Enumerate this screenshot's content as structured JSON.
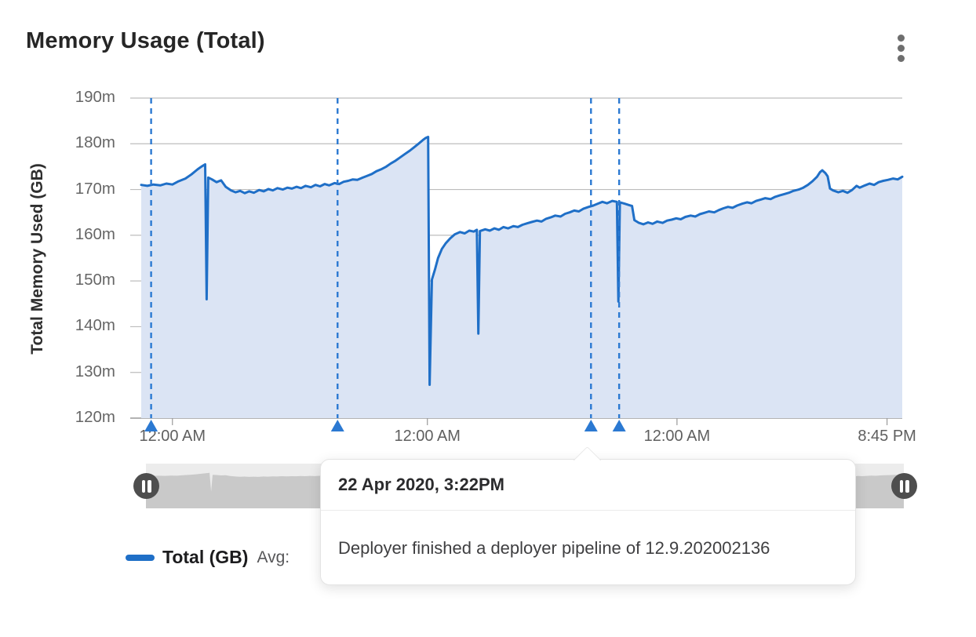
{
  "header": {
    "title": "Memory Usage (Total)"
  },
  "chart_data": {
    "type": "area",
    "title": "Memory Usage (Total)",
    "xlabel": "",
    "ylabel": "Total Memory Used (GB)",
    "ylim": [
      120,
      190
    ],
    "grid": true,
    "y_ticks": [
      {
        "value": 190,
        "label": "190m"
      },
      {
        "value": 180,
        "label": "180m"
      },
      {
        "value": 170,
        "label": "170m"
      },
      {
        "value": 160,
        "label": "160m"
      },
      {
        "value": 150,
        "label": "150m"
      },
      {
        "value": 140,
        "label": "140m"
      },
      {
        "value": 130,
        "label": "130m"
      },
      {
        "value": 120,
        "label": "120m"
      }
    ],
    "x_ticks": [
      {
        "pos": 0.041,
        "label": "12:00 AM"
      },
      {
        "pos": 0.376,
        "label": "12:00 AM"
      },
      {
        "pos": 0.704,
        "label": "12:00 AM"
      },
      {
        "pos": 0.98,
        "label": "8:45 PM"
      }
    ],
    "series": [
      {
        "name": "Total (GB)",
        "color": "#1f6fc7",
        "fill": "#dbe4f4",
        "points": [
          [
            0,
            171
          ],
          [
            0.008,
            170.8
          ],
          [
            0.016,
            171.1
          ],
          [
            0.025,
            170.9
          ],
          [
            0.033,
            171.3
          ],
          [
            0.041,
            171.1
          ],
          [
            0.049,
            171.8
          ],
          [
            0.058,
            172.4
          ],
          [
            0.066,
            173.3
          ],
          [
            0.074,
            174.4
          ],
          [
            0.08,
            175.1
          ],
          [
            0.084,
            175.5
          ],
          [
            0.086,
            146
          ],
          [
            0.088,
            172.6
          ],
          [
            0.093,
            172.2
          ],
          [
            0.099,
            171.6
          ],
          [
            0.105,
            172
          ],
          [
            0.111,
            170.6
          ],
          [
            0.118,
            169.8
          ],
          [
            0.124,
            169.4
          ],
          [
            0.13,
            169.7
          ],
          [
            0.136,
            169.2
          ],
          [
            0.142,
            169.6
          ],
          [
            0.148,
            169.3
          ],
          [
            0.155,
            169.9
          ],
          [
            0.161,
            169.6
          ],
          [
            0.167,
            170.1
          ],
          [
            0.173,
            169.8
          ],
          [
            0.179,
            170.3
          ],
          [
            0.186,
            170
          ],
          [
            0.192,
            170.4
          ],
          [
            0.198,
            170.2
          ],
          [
            0.204,
            170.6
          ],
          [
            0.21,
            170.3
          ],
          [
            0.216,
            170.8
          ],
          [
            0.223,
            170.5
          ],
          [
            0.229,
            171
          ],
          [
            0.235,
            170.7
          ],
          [
            0.241,
            171.2
          ],
          [
            0.247,
            170.9
          ],
          [
            0.254,
            171.4
          ],
          [
            0.26,
            171.2
          ],
          [
            0.266,
            171.7
          ],
          [
            0.272,
            171.9
          ],
          [
            0.278,
            172.2
          ],
          [
            0.284,
            172.1
          ],
          [
            0.291,
            172.6
          ],
          [
            0.297,
            173
          ],
          [
            0.303,
            173.4
          ],
          [
            0.309,
            174
          ],
          [
            0.315,
            174.4
          ],
          [
            0.322,
            175
          ],
          [
            0.328,
            175.7
          ],
          [
            0.334,
            176.3
          ],
          [
            0.34,
            177
          ],
          [
            0.346,
            177.7
          ],
          [
            0.353,
            178.5
          ],
          [
            0.359,
            179.3
          ],
          [
            0.365,
            180.1
          ],
          [
            0.37,
            180.8
          ],
          [
            0.374,
            181.3
          ],
          [
            0.377,
            181.5
          ],
          [
            0.379,
            127.3
          ],
          [
            0.382,
            150.3
          ],
          [
            0.386,
            152.5
          ],
          [
            0.39,
            155
          ],
          [
            0.395,
            157
          ],
          [
            0.4,
            158.2
          ],
          [
            0.406,
            159.3
          ],
          [
            0.412,
            160.2
          ],
          [
            0.419,
            160.7
          ],
          [
            0.425,
            160.4
          ],
          [
            0.431,
            161
          ],
          [
            0.437,
            160.8
          ],
          [
            0.441,
            161.2
          ],
          [
            0.443,
            138.5
          ],
          [
            0.445,
            160.9
          ],
          [
            0.452,
            161.3
          ],
          [
            0.458,
            161
          ],
          [
            0.464,
            161.5
          ],
          [
            0.47,
            161.2
          ],
          [
            0.476,
            161.8
          ],
          [
            0.482,
            161.5
          ],
          [
            0.489,
            162
          ],
          [
            0.495,
            161.8
          ],
          [
            0.501,
            162.3
          ],
          [
            0.507,
            162.6
          ],
          [
            0.513,
            162.9
          ],
          [
            0.52,
            163.2
          ],
          [
            0.526,
            163
          ],
          [
            0.532,
            163.6
          ],
          [
            0.538,
            163.9
          ],
          [
            0.544,
            164.3
          ],
          [
            0.551,
            164.1
          ],
          [
            0.557,
            164.7
          ],
          [
            0.563,
            165
          ],
          [
            0.569,
            165.4
          ],
          [
            0.575,
            165.2
          ],
          [
            0.581,
            165.8
          ],
          [
            0.588,
            166.2
          ],
          [
            0.594,
            166.5
          ],
          [
            0.6,
            166.9
          ],
          [
            0.606,
            167.3
          ],
          [
            0.612,
            167
          ],
          [
            0.619,
            167.5
          ],
          [
            0.625,
            167.3
          ],
          [
            0.627,
            145.5
          ],
          [
            0.629,
            167.2
          ],
          [
            0.635,
            166.9
          ],
          [
            0.641,
            166.6
          ],
          [
            0.645,
            166.4
          ],
          [
            0.648,
            163.3
          ],
          [
            0.654,
            162.7
          ],
          [
            0.66,
            162.4
          ],
          [
            0.666,
            162.8
          ],
          [
            0.672,
            162.5
          ],
          [
            0.678,
            163
          ],
          [
            0.685,
            162.7
          ],
          [
            0.691,
            163.2
          ],
          [
            0.697,
            163.4
          ],
          [
            0.703,
            163.7
          ],
          [
            0.709,
            163.5
          ],
          [
            0.715,
            164
          ],
          [
            0.722,
            164.3
          ],
          [
            0.728,
            164.1
          ],
          [
            0.734,
            164.6
          ],
          [
            0.74,
            164.9
          ],
          [
            0.746,
            165.2
          ],
          [
            0.753,
            165
          ],
          [
            0.759,
            165.5
          ],
          [
            0.765,
            165.9
          ],
          [
            0.771,
            166.2
          ],
          [
            0.777,
            166
          ],
          [
            0.783,
            166.5
          ],
          [
            0.79,
            166.9
          ],
          [
            0.796,
            167.2
          ],
          [
            0.802,
            167
          ],
          [
            0.808,
            167.5
          ],
          [
            0.814,
            167.8
          ],
          [
            0.82,
            168.1
          ],
          [
            0.827,
            167.9
          ],
          [
            0.833,
            168.4
          ],
          [
            0.839,
            168.7
          ],
          [
            0.845,
            169
          ],
          [
            0.851,
            169.3
          ],
          [
            0.857,
            169.7
          ],
          [
            0.864,
            170
          ],
          [
            0.87,
            170.4
          ],
          [
            0.876,
            171
          ],
          [
            0.882,
            171.8
          ],
          [
            0.888,
            172.8
          ],
          [
            0.892,
            173.8
          ],
          [
            0.895,
            174.2
          ],
          [
            0.899,
            173.6
          ],
          [
            0.902,
            172.9
          ],
          [
            0.905,
            170.2
          ],
          [
            0.909,
            169.8
          ],
          [
            0.916,
            169.4
          ],
          [
            0.922,
            169.7
          ],
          [
            0.928,
            169.3
          ],
          [
            0.934,
            169.9
          ],
          [
            0.94,
            170.8
          ],
          [
            0.944,
            170.4
          ],
          [
            0.951,
            170.9
          ],
          [
            0.957,
            171.3
          ],
          [
            0.963,
            171
          ],
          [
            0.969,
            171.6
          ],
          [
            0.975,
            171.9
          ],
          [
            0.981,
            172.1
          ],
          [
            0.988,
            172.4
          ],
          [
            0.994,
            172.2
          ],
          [
            1,
            172.8
          ]
        ]
      }
    ],
    "annotations": {
      "style": "vertical-dashed-line-with-triangle-marker",
      "color": "#2b79d2",
      "positions": [
        0.013,
        0.258,
        0.591,
        0.628
      ]
    },
    "legend_position": "bottom-left"
  },
  "legend": {
    "series_label": "Total (GB)",
    "avg_label": "Avg:",
    "swatch_color": "#1f6fc7"
  },
  "tooltip": {
    "title": "22 Apr 2020, 3:22PM",
    "message": "Deployer finished a deployer pipeline of 12.9.202002136"
  },
  "slider": {
    "track_color": "#ececec",
    "minimap_fill": "#c9c9c9",
    "handle_color": "#4e4e4e",
    "left_handle_icon": "pause-icon",
    "right_handle_icon": "pause-icon"
  }
}
